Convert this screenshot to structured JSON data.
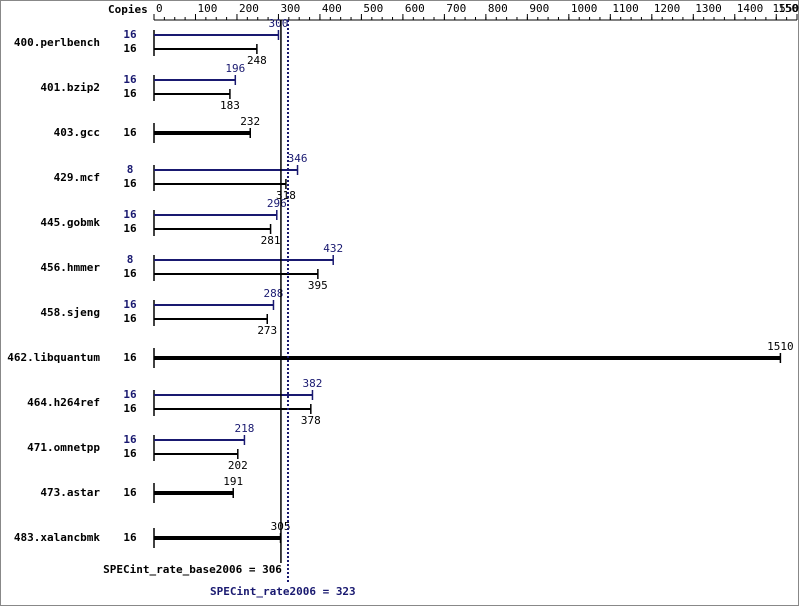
{
  "chart_data": {
    "type": "hbar",
    "axis_title": "Copies",
    "categories": [
      "400.perlbench",
      "401.bzip2",
      "403.gcc",
      "429.mcf",
      "445.gobmk",
      "456.hmmer",
      "458.sjeng",
      "462.libquantum",
      "464.h264ref",
      "471.omnetpp",
      "473.astar",
      "483.xalancbmk"
    ],
    "series": [
      {
        "color": "#191970",
        "values": [
          300,
          196,
          null,
          346,
          296,
          432,
          288,
          null,
          382,
          218,
          null,
          null
        ],
        "copies": [
          16,
          16,
          null,
          8,
          16,
          8,
          16,
          null,
          16,
          16,
          null,
          null
        ]
      },
      {
        "color": "#000000",
        "values": [
          248,
          183,
          232,
          318,
          281,
          395,
          273,
          1510,
          378,
          202,
          191,
          305
        ],
        "copies": [
          16,
          16,
          16,
          16,
          16,
          16,
          16,
          16,
          16,
          16,
          16,
          16
        ]
      }
    ],
    "xlim": [
      0,
      1550
    ],
    "xticks": [
      0,
      100,
      200,
      300,
      400,
      500,
      600,
      700,
      800,
      900,
      1000,
      1100,
      1200,
      1300,
      1400,
      1500,
      1550
    ],
    "reference_lines": [
      {
        "label": "SPECint_rate_base2006 = 306",
        "value": 306,
        "color": "#000000",
        "dashed": false
      },
      {
        "label": "SPECint_rate2006 = 323",
        "value": 323,
        "color": "#191970",
        "dashed": true
      }
    ]
  }
}
